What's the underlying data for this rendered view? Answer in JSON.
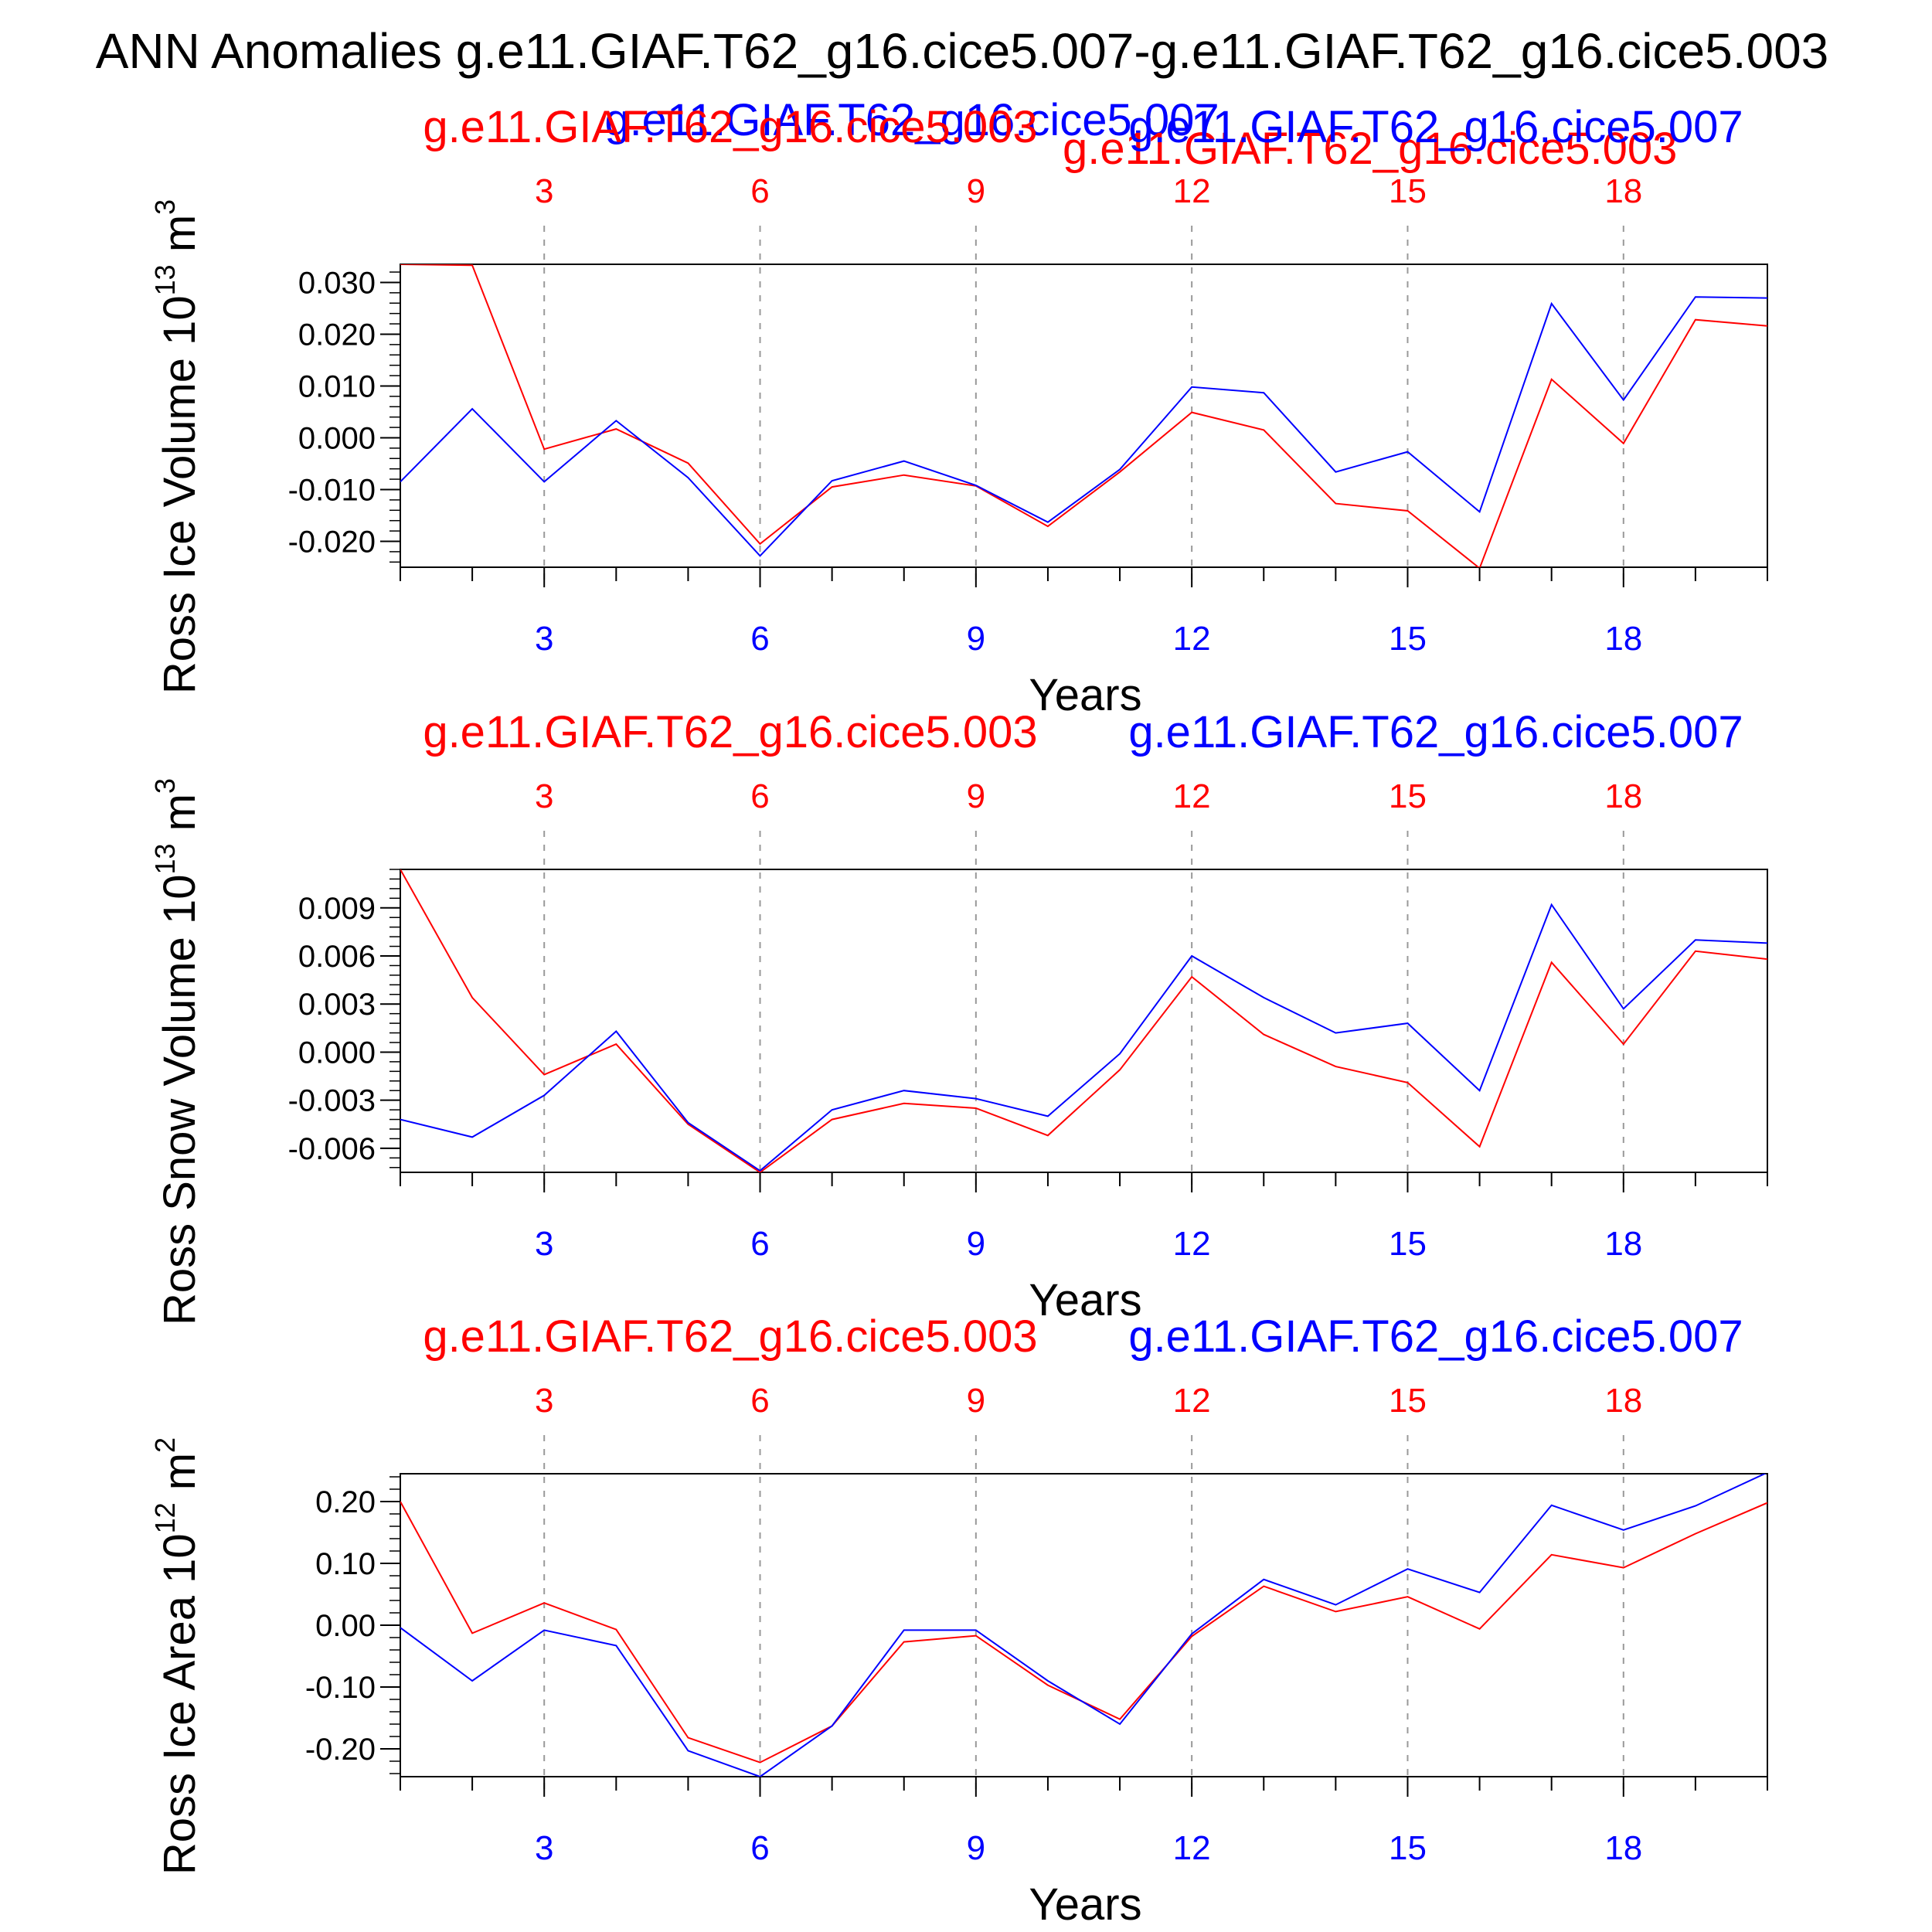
{
  "title": "ANN Anomalies g.e11.GIAF.T62_g16.cice5.007-g.e11.GIAF.T62_g16.cice5.003",
  "colors": {
    "red": "#ff0000",
    "blue": "#0000ff",
    "axis": "#000000",
    "grid": "#999999"
  },
  "extra_labels": {
    "blue_run": "g.e11.GIAF.T62_g16.cice5.007",
    "red_run": "g.e11.GIAF.T62_g16.cice5.003"
  },
  "chart_data": [
    {
      "type": "line",
      "ylabel_main": "Ross Ice Volume 10",
      "ylabel_exp": "13",
      "ylabel_unit": " m",
      "ylabel_unit_exp": "3",
      "xlabel": "Years",
      "xlim": [
        1,
        20
      ],
      "ylim": [
        -0.025,
        0.0335
      ],
      "xticks": [
        3,
        6,
        9,
        12,
        15,
        18
      ],
      "yticks": [
        -0.02,
        -0.01,
        0.0,
        0.01,
        0.02,
        0.03
      ],
      "ytick_labels": [
        "-0.020",
        "-0.010",
        "0.000",
        "0.010",
        "0.020",
        "0.030"
      ],
      "yminor_step": 0.002,
      "series": [
        {
          "name": "g.e11.GIAF.T62_g16.cice5.003",
          "color": "#ff0000",
          "x": [
            1,
            2,
            3,
            4,
            5,
            6,
            7,
            8,
            9,
            10,
            11,
            12,
            13,
            14,
            15,
            16,
            17,
            18,
            19,
            20
          ],
          "values": [
            0.0335,
            0.0333,
            -0.0022,
            0.0017,
            -0.0049,
            -0.0205,
            -0.0095,
            -0.0072,
            -0.0093,
            -0.0171,
            -0.0066,
            0.0049,
            0.0015,
            -0.0127,
            -0.0141,
            -0.0252,
            0.0113,
            -0.0011,
            0.0228,
            0.0216
          ]
        },
        {
          "name": "g.e11.GIAF.T62_g16.cice5.007",
          "color": "#0000ff",
          "x": [
            1,
            2,
            3,
            4,
            5,
            6,
            7,
            8,
            9,
            10,
            11,
            12,
            13,
            14,
            15,
            16,
            17,
            18,
            19,
            20
          ],
          "values": [
            -0.0085,
            0.0056,
            -0.0085,
            0.0033,
            -0.0077,
            -0.0228,
            -0.0083,
            -0.0045,
            -0.0092,
            -0.0163,
            -0.0061,
            0.0098,
            0.0087,
            -0.0066,
            -0.0027,
            -0.0143,
            0.0259,
            0.0073,
            0.0272,
            0.027
          ]
        }
      ]
    },
    {
      "type": "line",
      "ylabel_main": "Ross Snow Volume 10",
      "ylabel_exp": "13",
      "ylabel_unit": " m",
      "ylabel_unit_exp": "3",
      "xlabel": "Years",
      "xlim": [
        1,
        20
      ],
      "ylim": [
        -0.0075,
        0.0114
      ],
      "xticks": [
        3,
        6,
        9,
        12,
        15,
        18
      ],
      "yticks": [
        -0.006,
        -0.003,
        0.0,
        0.003,
        0.006,
        0.009
      ],
      "ytick_labels": [
        "-0.006",
        "-0.003",
        "0.000",
        "0.003",
        "0.006",
        "0.009"
      ],
      "yminor_step": 0.0006,
      "series": [
        {
          "name": "g.e11.GIAF.T62_g16.cice5.003",
          "color": "#ff0000",
          "x": [
            1,
            2,
            3,
            4,
            5,
            6,
            7,
            8,
            9,
            10,
            11,
            12,
            13,
            14,
            15,
            16,
            17,
            18,
            19,
            20
          ],
          "values": [
            0.0114,
            0.0034,
            -0.0014,
            0.0005,
            -0.0045,
            -0.0075,
            -0.0042,
            -0.0032,
            -0.0035,
            -0.0052,
            -0.0011,
            0.0047,
            0.0011,
            -0.0009,
            -0.0019,
            -0.0059,
            0.0056,
            0.0005,
            0.0063,
            0.0058
          ]
        },
        {
          "name": "g.e11.GIAF.T62_g16.cice5.007",
          "color": "#0000ff",
          "x": [
            1,
            2,
            3,
            4,
            5,
            6,
            7,
            8,
            9,
            10,
            11,
            12,
            13,
            14,
            15,
            16,
            17,
            18,
            19,
            20
          ],
          "values": [
            -0.0042,
            -0.0053,
            -0.0027,
            0.0013,
            -0.0044,
            -0.0074,
            -0.0036,
            -0.0024,
            -0.0029,
            -0.004,
            -0.0001,
            0.006,
            0.0034,
            0.0012,
            0.0018,
            -0.0024,
            0.0092,
            0.0027,
            0.007,
            0.0068
          ]
        }
      ]
    },
    {
      "type": "line",
      "ylabel_main": "Ross Ice Area 10",
      "ylabel_exp": "12",
      "ylabel_unit": " m",
      "ylabel_unit_exp": "2",
      "xlabel": "Years",
      "xlim": [
        1,
        20
      ],
      "ylim": [
        -0.245,
        0.245
      ],
      "xticks": [
        3,
        6,
        9,
        12,
        15,
        18
      ],
      "yticks": [
        -0.2,
        -0.1,
        0.0,
        0.1,
        0.2
      ],
      "ytick_labels": [
        "-0.20",
        "-0.10",
        "0.00",
        "0.10",
        "0.20"
      ],
      "yminor_step": 0.02,
      "series": [
        {
          "name": "g.e11.GIAF.T62_g16.cice5.003",
          "color": "#ff0000",
          "x": [
            1,
            2,
            3,
            4,
            5,
            6,
            7,
            8,
            9,
            10,
            11,
            12,
            13,
            14,
            15,
            16,
            17,
            18,
            19,
            20
          ],
          "values": [
            0.2,
            -0.013,
            0.036,
            -0.007,
            -0.182,
            -0.222,
            -0.163,
            -0.027,
            -0.017,
            -0.097,
            -0.152,
            -0.018,
            0.063,
            0.022,
            0.046,
            -0.006,
            0.114,
            0.093,
            0.148,
            0.198
          ]
        },
        {
          "name": "g.e11.GIAF.T62_g16.cice5.007",
          "color": "#0000ff",
          "x": [
            1,
            2,
            3,
            4,
            5,
            6,
            7,
            8,
            9,
            10,
            11,
            12,
            13,
            14,
            15,
            16,
            17,
            18,
            19,
            20
          ],
          "values": [
            -0.004,
            -0.09,
            -0.008,
            -0.033,
            -0.203,
            -0.245,
            -0.163,
            -0.008,
            -0.008,
            -0.09,
            -0.16,
            -0.014,
            0.074,
            0.033,
            0.091,
            0.053,
            0.194,
            0.154,
            0.193,
            0.247
          ]
        }
      ]
    }
  ]
}
